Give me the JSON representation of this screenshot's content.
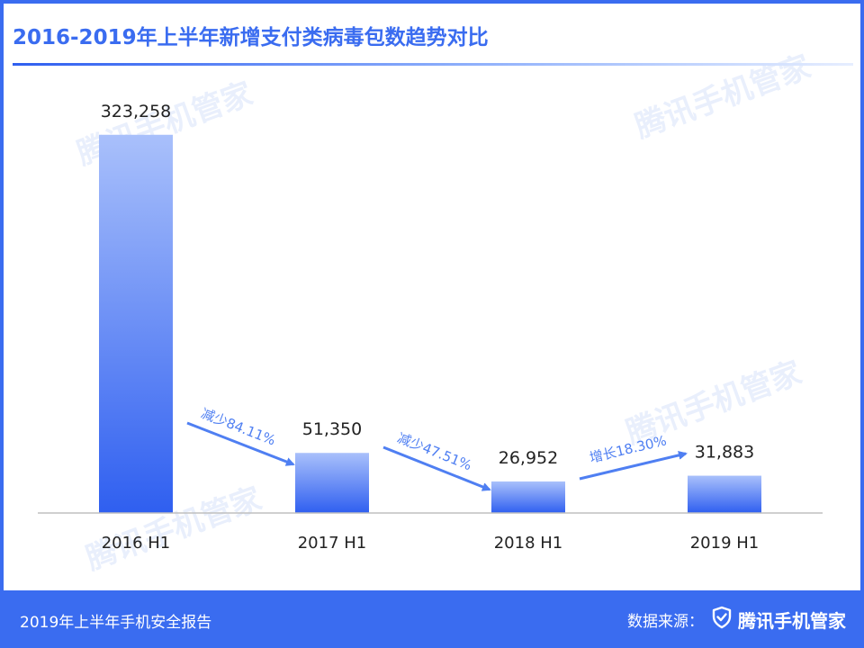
{
  "title": "2016-2019年上半年新增支付类病毒包数趋势对比",
  "watermark_text": "腾讯手机管家",
  "colors": {
    "accent": "#3a6cf0",
    "bar_top": "#a9c0fb",
    "bar_bottom": "#2f5ff0",
    "arrow": "#4f7ff2",
    "axis": "#bfbfbf"
  },
  "chart_data": {
    "type": "bar",
    "title": "2016-2019年上半年新增支付类病毒包数趋势对比",
    "categories": [
      "2016 H1",
      "2017 H1",
      "2018 H1",
      "2019 H1"
    ],
    "values": [
      323258,
      51350,
      26952,
      31883
    ],
    "value_labels": [
      "323,258",
      "51,350",
      "26,952",
      "31,883"
    ],
    "ylim": [
      0,
      340000
    ],
    "grid": false,
    "legend": "none",
    "annotations": [
      {
        "from": 0,
        "to": 1,
        "text": "减少84.11%",
        "direction": "down"
      },
      {
        "from": 1,
        "to": 2,
        "text": "减少47.51%",
        "direction": "down"
      },
      {
        "from": 2,
        "to": 3,
        "text": "增长18.30%",
        "direction": "up"
      }
    ]
  },
  "footer": {
    "report": "2019年上半年手机安全报告",
    "source_label": "数据来源：",
    "brand": "腾讯手机管家",
    "brand_icon": "shield-check-icon"
  }
}
